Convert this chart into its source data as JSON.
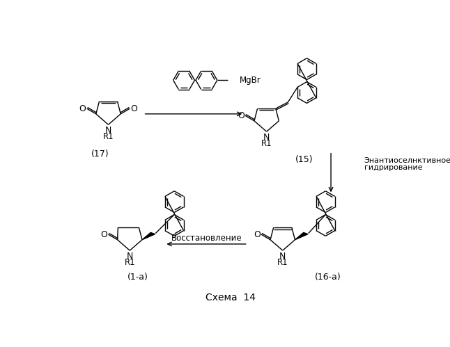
{
  "background_color": "#ffffff",
  "title": "Схема  14",
  "title_fontsize": 10,
  "text_color": "#000000",
  "line_color": "#000000",
  "figsize": [
    6.46,
    4.99
  ],
  "dpi": 100,
  "arrow_label_right1": "Энантиоселнктивное",
  "arrow_label_right2": "гидрирование",
  "arrow_label_bottom": "Восстановление",
  "mgbr_label": "MgBr",
  "label_17": "(17)",
  "label_15": "(15)",
  "label_1a": "(1-a)",
  "label_16a": "(16-a)"
}
